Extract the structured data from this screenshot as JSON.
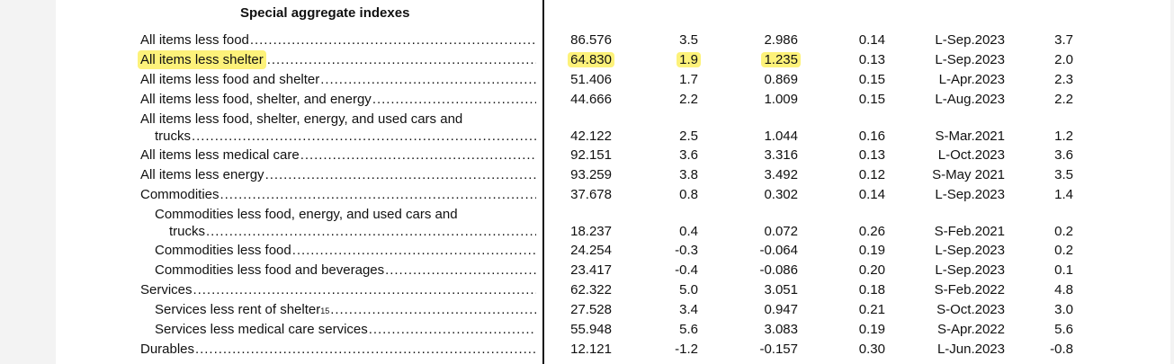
{
  "section_title": "Special aggregate indexes",
  "rows": [
    {
      "label": "All items less food",
      "v1": "86.576",
      "v2": "3.5",
      "v3": "2.986",
      "v4": "0.14",
      "v5": "L-Sep.2023",
      "v6": "3.7"
    },
    {
      "label": "All items less shelter",
      "v1": "64.830",
      "v2": "1.9",
      "v3": "1.235",
      "v4": "0.13",
      "v5": "L-Sep.2023",
      "v6": "2.0",
      "highlight": true
    },
    {
      "label": "All items less food and shelter",
      "v1": "51.406",
      "v2": "1.7",
      "v3": "0.869",
      "v4": "0.15",
      "v5": "L-Apr.2023",
      "v6": "2.3"
    },
    {
      "label": "All items less food, shelter, and energy",
      "v1": "44.666",
      "v2": "2.2",
      "v3": "1.009",
      "v4": "0.15",
      "v5": "L-Aug.2023",
      "v6": "2.2"
    },
    {
      "label_line1": "All items less food, shelter, energy, and used cars and",
      "label": "trucks",
      "v1": "42.122",
      "v2": "2.5",
      "v3": "1.044",
      "v4": "0.16",
      "v5": "S-Mar.2021",
      "v6": "1.2"
    },
    {
      "label": "All items less medical care",
      "v1": "92.151",
      "v2": "3.6",
      "v3": "3.316",
      "v4": "0.13",
      "v5": "L-Oct.2023",
      "v6": "3.6"
    },
    {
      "label": "All items less energy",
      "v1": "93.259",
      "v2": "3.8",
      "v3": "3.492",
      "v4": "0.12",
      "v5": "S-May 2021",
      "v6": "3.5"
    },
    {
      "label": "Commodities",
      "v1": "37.678",
      "v2": "0.8",
      "v3": "0.302",
      "v4": "0.14",
      "v5": "L-Sep.2023",
      "v6": "1.4"
    },
    {
      "label_line1": "Commodities less food, energy, and used cars and",
      "label": "trucks",
      "v1": "18.237",
      "v2": "0.4",
      "v3": "0.072",
      "v4": "0.26",
      "v5": "S-Feb.2021",
      "v6": "0.2"
    },
    {
      "label": "Commodities less food",
      "v1": "24.254",
      "v2": "-0.3",
      "v3": "-0.064",
      "v4": "0.19",
      "v5": "L-Sep.2023",
      "v6": "0.2"
    },
    {
      "label": "Commodities less food and beverages",
      "v1": "23.417",
      "v2": "-0.4",
      "v3": "-0.086",
      "v4": "0.20",
      "v5": "L-Sep.2023",
      "v6": "0.1"
    },
    {
      "label": "Services",
      "v1": "62.322",
      "v2": "5.0",
      "v3": "3.051",
      "v4": "0.18",
      "v5": "S-Feb.2022",
      "v6": "4.8"
    },
    {
      "label": "Services less rent of shelter",
      "footnote": "15",
      "v1": "27.528",
      "v2": "3.4",
      "v3": "0.947",
      "v4": "0.21",
      "v5": "S-Oct.2023",
      "v6": "3.0"
    },
    {
      "label": "Services less medical care services",
      "v1": "55.948",
      "v2": "5.6",
      "v3": "3.083",
      "v4": "0.19",
      "v5": "S-Apr.2022",
      "v6": "5.6"
    },
    {
      "label": "Durables",
      "v1": "12.121",
      "v2": "-1.2",
      "v3": "-0.157",
      "v4": "0.30",
      "v5": "L-Jun.2023",
      "v6": "-0.8"
    }
  ]
}
